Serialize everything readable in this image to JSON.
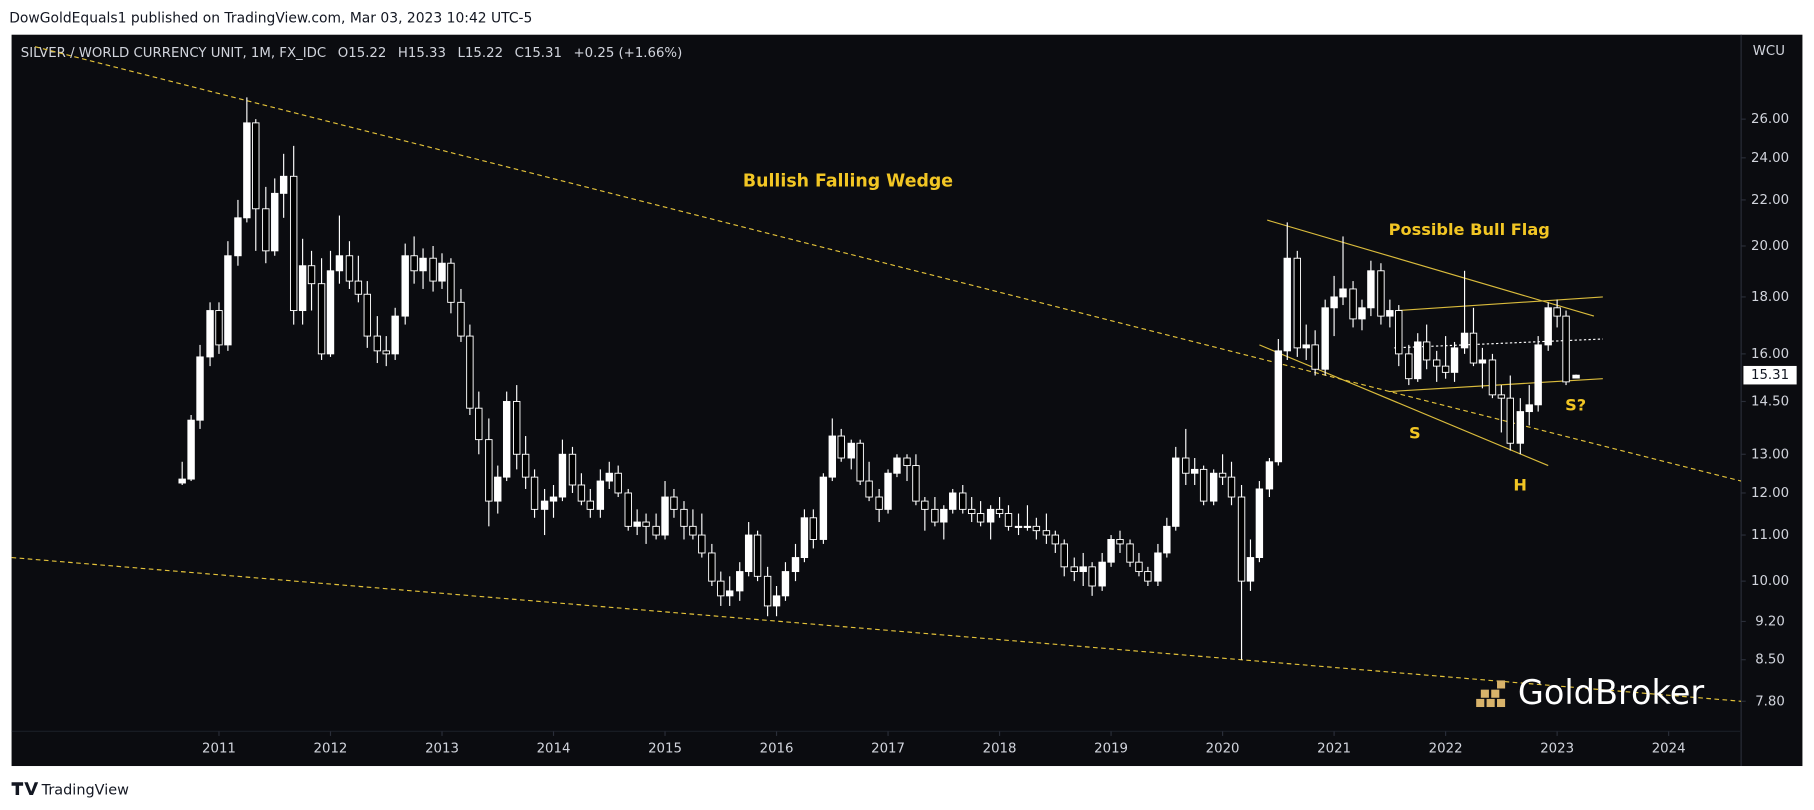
{
  "header": {
    "publisher": "DowGoldEquals1 published on TradingView.com, Mar 03, 2023 10:42 UTC-5"
  },
  "footer": {
    "brand": "TradingView"
  },
  "watermark": "GoldBroker",
  "chart_data": {
    "type": "candlestick",
    "title": "SILVER / WORLD CURRENCY UNIT, 1M, FX_IDC",
    "legend_values": [
      "O15.22",
      "H15.33",
      "L15.22",
      "C15.31",
      "+0.25 (+1.66%)"
    ],
    "y_axis_unit": "WCU",
    "log_scale": true,
    "grid": false,
    "up_color": "#ffffff",
    "down_color": "#000000",
    "wick_color": "#ffffff",
    "annotation_color": "#f2c624",
    "annotations": [
      "Bullish Falling Wedge",
      "Possible Bull Flag",
      "S",
      "H",
      "S?"
    ],
    "xlim": [
      2009.14,
      2024.65
    ],
    "ylim": [
      7.33,
      30.96
    ],
    "xticks": [
      2011,
      2012,
      2013,
      2014,
      2015,
      2016,
      2017,
      2018,
      2019,
      2020,
      2021,
      2022,
      2023,
      2024
    ],
    "yticks": [
      {
        "value": 7.8,
        "label": "7.80"
      },
      {
        "value": 8.5,
        "label": "8.50"
      },
      {
        "value": 9.2,
        "label": "9.20"
      },
      {
        "value": 10,
        "label": "10.00"
      },
      {
        "value": 11,
        "label": "11.00"
      },
      {
        "value": 12,
        "label": "12.00"
      },
      {
        "value": 13,
        "label": "13.00"
      },
      {
        "value": 14.5,
        "label": "14.50"
      },
      {
        "value": 16,
        "label": "16.00"
      },
      {
        "value": 18,
        "label": "18.00"
      },
      {
        "value": 20,
        "label": "20.00"
      },
      {
        "value": 22,
        "label": "22.00"
      },
      {
        "value": 24,
        "label": "24.00"
      },
      {
        "value": 26,
        "label": "26.00"
      }
    ],
    "trendlines": [
      {
        "x": [
          2009.35,
          2024.65
        ],
        "y": [
          30.2,
          12.3
        ],
        "style": "dashed",
        "color": "#e3c23a"
      },
      {
        "x": [
          2009.14,
          2024.65
        ],
        "y": [
          10.5,
          7.8
        ],
        "style": "dashed",
        "color": "#e3c23a"
      },
      {
        "x": [
          2020.4,
          2023.33
        ],
        "y": [
          21.1,
          17.3
        ],
        "style": "solid",
        "color": "#d9bb3c"
      },
      {
        "x": [
          2020.33,
          2022.92
        ],
        "y": [
          16.3,
          12.7
        ],
        "style": "solid",
        "color": "#d9bb3c"
      },
      {
        "x": [
          2021.57,
          2023.41
        ],
        "y": [
          17.5,
          18.0
        ],
        "style": "solid",
        "color": "#d9bb3c"
      },
      {
        "x": [
          2021.49,
          2023.41
        ],
        "y": [
          14.8,
          15.2
        ],
        "style": "solid",
        "color": "#d9bb3c"
      },
      {
        "x": [
          2021.54,
          2023.41
        ],
        "y": [
          16.2,
          16.5
        ],
        "style": "dotted",
        "color": "#ffffff"
      }
    ],
    "x": [
      2010.67,
      2010.75,
      2010.83,
      2010.92,
      2011,
      2011.08,
      2011.17,
      2011.25,
      2011.33,
      2011.42,
      2011.5,
      2011.58,
      2011.67,
      2011.75,
      2011.83,
      2011.92,
      2012,
      2012.08,
      2012.17,
      2012.25,
      2012.33,
      2012.42,
      2012.5,
      2012.58,
      2012.67,
      2012.75,
      2012.83,
      2012.92,
      2013,
      2013.08,
      2013.17,
      2013.25,
      2013.33,
      2013.42,
      2013.5,
      2013.58,
      2013.67,
      2013.75,
      2013.83,
      2013.92,
      2014,
      2014.08,
      2014.17,
      2014.25,
      2014.33,
      2014.42,
      2014.5,
      2014.58,
      2014.67,
      2014.75,
      2014.83,
      2014.92,
      2015,
      2015.08,
      2015.17,
      2015.25,
      2015.33,
      2015.42,
      2015.5,
      2015.58,
      2015.67,
      2015.75,
      2015.83,
      2015.92,
      2016,
      2016.08,
      2016.17,
      2016.25,
      2016.33,
      2016.42,
      2016.5,
      2016.58,
      2016.67,
      2016.75,
      2016.83,
      2016.92,
      2017,
      2017.08,
      2017.17,
      2017.25,
      2017.33,
      2017.42,
      2017.5,
      2017.58,
      2017.67,
      2017.75,
      2017.83,
      2017.92,
      2018,
      2018.08,
      2018.17,
      2018.25,
      2018.33,
      2018.42,
      2018.5,
      2018.58,
      2018.67,
      2018.75,
      2018.83,
      2018.92,
      2019,
      2019.08,
      2019.17,
      2019.25,
      2019.33,
      2019.42,
      2019.5,
      2019.58,
      2019.67,
      2019.75,
      2019.83,
      2019.92,
      2020,
      2020.08,
      2020.17,
      2020.25,
      2020.33,
      2020.42,
      2020.5,
      2020.58,
      2020.67,
      2020.75,
      2020.83,
      2020.92,
      2021,
      2021.08,
      2021.17,
      2021.25,
      2021.33,
      2021.42,
      2021.5,
      2021.58,
      2021.67,
      2021.75,
      2021.83,
      2021.92,
      2022,
      2022.08,
      2022.17,
      2022.25,
      2022.33,
      2022.42,
      2022.5,
      2022.58,
      2022.67,
      2022.75,
      2022.83,
      2022.92,
      2023,
      2023.08,
      2023.17
    ],
    "ohlc": [
      [
        12.25,
        12.8,
        12.2,
        12.35
      ],
      [
        12.35,
        14.1,
        12.3,
        13.95
      ],
      [
        13.95,
        16.3,
        13.7,
        15.9
      ],
      [
        15.9,
        17.8,
        15.6,
        17.5
      ],
      [
        17.5,
        17.8,
        16.0,
        16.3
      ],
      [
        16.3,
        20.2,
        16.1,
        19.6
      ],
      [
        19.6,
        22.0,
        19.2,
        21.2
      ],
      [
        21.2,
        27.2,
        21.0,
        25.8
      ],
      [
        25.8,
        26.0,
        19.8,
        21.6
      ],
      [
        21.6,
        22.6,
        19.3,
        19.8
      ],
      [
        19.8,
        23.0,
        19.6,
        22.3
      ],
      [
        22.3,
        24.2,
        21.2,
        23.1
      ],
      [
        23.1,
        24.6,
        17.0,
        17.5
      ],
      [
        17.5,
        20.3,
        17.0,
        19.2
      ],
      [
        19.2,
        19.8,
        17.5,
        18.5
      ],
      [
        18.5,
        19.5,
        15.8,
        16.0
      ],
      [
        16.0,
        19.8,
        15.9,
        19.0
      ],
      [
        19.0,
        21.3,
        18.5,
        19.6
      ],
      [
        19.6,
        20.2,
        18.3,
        18.6
      ],
      [
        18.6,
        19.6,
        17.8,
        18.1
      ],
      [
        18.1,
        18.6,
        16.2,
        16.6
      ],
      [
        16.6,
        17.3,
        15.7,
        16.1
      ],
      [
        16.1,
        16.6,
        15.6,
        16.0
      ],
      [
        16.0,
        17.6,
        15.8,
        17.3
      ],
      [
        17.3,
        20.1,
        17.0,
        19.6
      ],
      [
        19.6,
        20.4,
        18.5,
        19.0
      ],
      [
        19.0,
        19.9,
        18.3,
        19.5
      ],
      [
        19.5,
        20.0,
        18.2,
        18.6
      ],
      [
        18.6,
        19.7,
        18.3,
        19.3
      ],
      [
        19.3,
        19.5,
        17.4,
        17.8
      ],
      [
        17.8,
        18.3,
        16.4,
        16.6
      ],
      [
        16.6,
        17.0,
        14.1,
        14.3
      ],
      [
        14.3,
        14.8,
        13.0,
        13.4
      ],
      [
        13.4,
        14.0,
        11.2,
        11.8
      ],
      [
        11.8,
        12.7,
        11.5,
        12.4
      ],
      [
        12.4,
        14.8,
        12.3,
        14.5
      ],
      [
        14.5,
        15.0,
        12.6,
        13.0
      ],
      [
        13.0,
        13.5,
        12.1,
        12.4
      ],
      [
        12.4,
        12.6,
        11.4,
        11.6
      ],
      [
        11.6,
        12.1,
        11.0,
        11.8
      ],
      [
        11.8,
        12.2,
        11.4,
        11.9
      ],
      [
        11.9,
        13.4,
        11.8,
        13.0
      ],
      [
        13.0,
        13.2,
        12.0,
        12.2
      ],
      [
        12.2,
        12.5,
        11.7,
        11.8
      ],
      [
        11.8,
        12.1,
        11.4,
        11.6
      ],
      [
        11.6,
        12.6,
        11.4,
        12.3
      ],
      [
        12.3,
        12.8,
        12.1,
        12.5
      ],
      [
        12.5,
        12.7,
        11.9,
        12.0
      ],
      [
        12.0,
        12.1,
        11.1,
        11.2
      ],
      [
        11.2,
        11.6,
        11.0,
        11.3
      ],
      [
        11.3,
        11.5,
        10.8,
        11.2
      ],
      [
        11.2,
        11.5,
        10.9,
        11.0
      ],
      [
        11.0,
        12.3,
        10.9,
        11.9
      ],
      [
        11.9,
        12.1,
        11.4,
        11.6
      ],
      [
        11.6,
        11.8,
        10.9,
        11.2
      ],
      [
        11.2,
        11.6,
        10.9,
        11.0
      ],
      [
        11.0,
        11.5,
        10.5,
        10.6
      ],
      [
        10.6,
        10.8,
        9.9,
        10.0
      ],
      [
        10.0,
        10.2,
        9.5,
        9.7
      ],
      [
        9.7,
        10.1,
        9.5,
        9.8
      ],
      [
        9.8,
        10.4,
        9.6,
        10.2
      ],
      [
        10.2,
        11.3,
        10.1,
        11.0
      ],
      [
        11.0,
        11.1,
        10.0,
        10.1
      ],
      [
        10.1,
        10.3,
        9.3,
        9.5
      ],
      [
        9.5,
        9.9,
        9.3,
        9.7
      ],
      [
        9.7,
        10.4,
        9.6,
        10.2
      ],
      [
        10.2,
        10.8,
        10.0,
        10.5
      ],
      [
        10.5,
        11.6,
        10.4,
        11.4
      ],
      [
        11.4,
        11.6,
        10.7,
        10.9
      ],
      [
        10.9,
        12.5,
        10.8,
        12.4
      ],
      [
        12.4,
        14.0,
        12.3,
        13.5
      ],
      [
        13.5,
        13.7,
        12.8,
        12.9
      ],
      [
        12.9,
        13.4,
        12.6,
        13.3
      ],
      [
        13.3,
        13.4,
        12.2,
        12.3
      ],
      [
        12.3,
        12.8,
        11.8,
        11.9
      ],
      [
        11.9,
        12.1,
        11.3,
        11.6
      ],
      [
        11.6,
        12.6,
        11.5,
        12.5
      ],
      [
        12.5,
        13.0,
        12.4,
        12.9
      ],
      [
        12.9,
        13.0,
        12.3,
        12.7
      ],
      [
        12.7,
        13.0,
        11.7,
        11.8
      ],
      [
        11.8,
        11.9,
        11.1,
        11.6
      ],
      [
        11.6,
        11.9,
        11.2,
        11.3
      ],
      [
        11.3,
        11.7,
        10.9,
        11.6
      ],
      [
        11.6,
        12.1,
        11.5,
        12.0
      ],
      [
        12.0,
        12.2,
        11.5,
        11.6
      ],
      [
        11.6,
        11.9,
        11.3,
        11.5
      ],
      [
        11.5,
        11.8,
        11.2,
        11.3
      ],
      [
        11.3,
        11.7,
        10.9,
        11.6
      ],
      [
        11.6,
        11.9,
        11.4,
        11.5
      ],
      [
        11.5,
        11.7,
        11.1,
        11.2
      ],
      [
        11.2,
        11.5,
        11.0,
        11.2
      ],
      [
        11.2,
        11.7,
        11.1,
        11.2
      ],
      [
        11.2,
        11.4,
        10.9,
        11.1
      ],
      [
        11.1,
        11.5,
        10.8,
        11.0
      ],
      [
        11.0,
        11.1,
        10.6,
        10.8
      ],
      [
        10.8,
        10.9,
        10.1,
        10.3
      ],
      [
        10.3,
        10.5,
        10.0,
        10.2
      ],
      [
        10.2,
        10.6,
        9.9,
        10.3
      ],
      [
        10.3,
        10.4,
        9.7,
        9.9
      ],
      [
        9.9,
        10.6,
        9.8,
        10.4
      ],
      [
        10.4,
        11.0,
        10.3,
        10.9
      ],
      [
        10.9,
        11.1,
        10.6,
        10.8
      ],
      [
        10.8,
        10.9,
        10.3,
        10.4
      ],
      [
        10.4,
        10.6,
        10.1,
        10.2
      ],
      [
        10.2,
        10.3,
        9.9,
        10.0
      ],
      [
        10.0,
        10.8,
        9.9,
        10.6
      ],
      [
        10.6,
        11.4,
        10.5,
        11.2
      ],
      [
        11.2,
        13.2,
        11.1,
        12.9
      ],
      [
        12.9,
        13.7,
        12.2,
        12.5
      ],
      [
        12.5,
        12.9,
        12.2,
        12.6
      ],
      [
        12.6,
        12.7,
        11.7,
        11.8
      ],
      [
        11.8,
        12.6,
        11.7,
        12.5
      ],
      [
        12.5,
        13.0,
        12.2,
        12.4
      ],
      [
        12.4,
        12.8,
        11.7,
        11.9
      ],
      [
        11.9,
        12.2,
        8.5,
        10.0
      ],
      [
        10.0,
        10.9,
        9.8,
        10.5
      ],
      [
        10.5,
        12.3,
        10.4,
        12.1
      ],
      [
        12.1,
        12.9,
        11.9,
        12.8
      ],
      [
        12.8,
        16.5,
        12.7,
        16.1
      ],
      [
        16.1,
        21.0,
        15.8,
        19.5
      ],
      [
        19.5,
        19.8,
        15.9,
        16.2
      ],
      [
        16.2,
        17.0,
        15.8,
        16.3
      ],
      [
        16.3,
        16.8,
        15.3,
        15.5
      ],
      [
        15.5,
        17.9,
        15.3,
        17.6
      ],
      [
        17.6,
        18.8,
        16.6,
        18.0
      ],
      [
        18.0,
        20.4,
        17.7,
        18.3
      ],
      [
        18.3,
        18.6,
        16.9,
        17.2
      ],
      [
        17.2,
        17.9,
        16.8,
        17.6
      ],
      [
        17.6,
        19.4,
        17.3,
        19.0
      ],
      [
        19.0,
        19.3,
        17.0,
        17.3
      ],
      [
        17.3,
        17.9,
        16.9,
        17.5
      ],
      [
        17.5,
        17.7,
        15.6,
        16.0
      ],
      [
        16.0,
        16.3,
        15.0,
        15.2
      ],
      [
        15.2,
        16.7,
        15.1,
        16.4
      ],
      [
        16.4,
        17.0,
        15.5,
        15.8
      ],
      [
        15.8,
        16.1,
        15.1,
        15.6
      ],
      [
        15.6,
        16.6,
        15.2,
        15.4
      ],
      [
        15.4,
        16.4,
        15.1,
        16.2
      ],
      [
        16.2,
        19.0,
        16.0,
        16.7
      ],
      [
        16.7,
        17.6,
        15.6,
        15.7
      ],
      [
        15.7,
        16.2,
        14.9,
        15.8
      ],
      [
        15.8,
        16.0,
        14.6,
        14.7
      ],
      [
        14.7,
        15.0,
        13.6,
        14.6
      ],
      [
        14.6,
        15.3,
        13.1,
        13.3
      ],
      [
        13.3,
        14.6,
        13.0,
        14.2
      ],
      [
        14.2,
        15.0,
        13.8,
        14.4
      ],
      [
        14.4,
        16.6,
        14.2,
        16.3
      ],
      [
        16.3,
        17.8,
        16.1,
        17.6
      ],
      [
        17.6,
        17.9,
        16.9,
        17.3
      ],
      [
        17.3,
        17.5,
        15.0,
        15.1
      ],
      [
        15.22,
        15.33,
        15.22,
        15.31
      ]
    ]
  }
}
